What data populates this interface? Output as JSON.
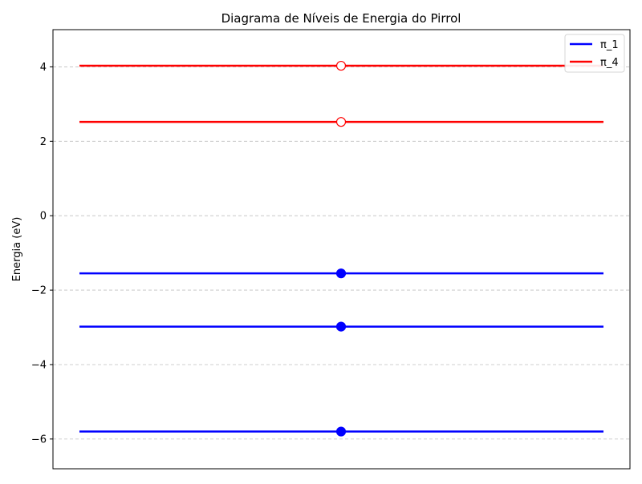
{
  "chart_data": {
    "type": "line",
    "title": "Diagrama de Níveis de Energia do Pirrol",
    "xlabel": "",
    "ylabel": "Energia (eV)",
    "ylim": [
      -6.8,
      5.0
    ],
    "yticks": [
      4,
      2,
      0,
      -2,
      -4,
      -6
    ],
    "ytick_labels": [
      "4",
      "2",
      "0",
      "−2",
      "−4",
      "−6"
    ],
    "grid": {
      "axis": "y",
      "style": "dashed",
      "color": "#c0c0c0"
    },
    "legend": {
      "placement": "top-right",
      "entries": [
        {
          "label": "π_1",
          "color": "#0000ff"
        },
        {
          "label": "π_4",
          "color": "#ff0000"
        }
      ]
    },
    "levels": [
      {
        "energy": -5.8,
        "color": "#0000ff",
        "occupied": true
      },
      {
        "energy": -2.98,
        "color": "#0000ff",
        "occupied": true
      },
      {
        "energy": -1.55,
        "color": "#0000ff",
        "occupied": true
      },
      {
        "energy": 2.52,
        "color": "#ff0000",
        "occupied": false
      },
      {
        "energy": 4.03,
        "color": "#ff0000",
        "occupied": false
      }
    ]
  }
}
